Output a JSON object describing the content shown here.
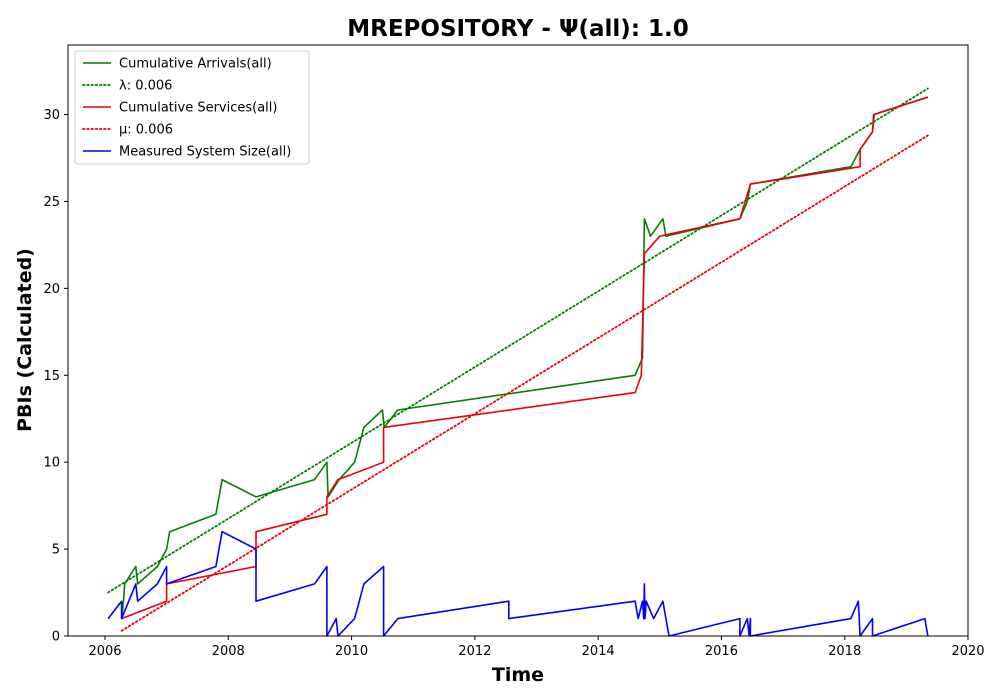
{
  "chart_data": {
    "type": "line",
    "title": "MREPOSITORY -  Ψ(all): 1.0",
    "xlabel": "Time",
    "ylabel": "PBIs (Calculated)",
    "xlim": [
      2005.4,
      2020.0
    ],
    "ylim": [
      0,
      34
    ],
    "x_ticks": [
      2006,
      2008,
      2010,
      2012,
      2014,
      2016,
      2018,
      2020
    ],
    "y_ticks": [
      0,
      5,
      10,
      15,
      20,
      25,
      30
    ],
    "legend_position": "top-left",
    "grid": false,
    "series": [
      {
        "name": "Cumulative Arrivals(all)",
        "color": "#008000",
        "style": "solid",
        "points": [
          [
            2006.27,
            1
          ],
          [
            2006.3,
            2
          ],
          [
            2006.32,
            3
          ],
          [
            2006.5,
            4
          ],
          [
            2006.53,
            3
          ],
          [
            2006.85,
            4
          ],
          [
            2007.0,
            5
          ],
          [
            2007.05,
            6
          ],
          [
            2007.8,
            7
          ],
          [
            2007.9,
            9
          ],
          [
            2008.45,
            8
          ],
          [
            2009.4,
            9
          ],
          [
            2009.6,
            10
          ],
          [
            2009.62,
            8
          ],
          [
            2009.8,
            9
          ],
          [
            2010.05,
            10
          ],
          [
            2010.2,
            12
          ],
          [
            2010.5,
            13
          ],
          [
            2010.53,
            12
          ],
          [
            2010.75,
            13
          ],
          [
            2014.6,
            15
          ],
          [
            2014.72,
            16
          ],
          [
            2014.75,
            24
          ],
          [
            2014.85,
            23
          ],
          [
            2015.05,
            24
          ],
          [
            2015.1,
            23
          ],
          [
            2016.3,
            24
          ],
          [
            2016.42,
            25
          ],
          [
            2016.47,
            26
          ],
          [
            2018.1,
            27
          ],
          [
            2018.25,
            28
          ],
          [
            2018.45,
            29
          ],
          [
            2018.48,
            30
          ],
          [
            2019.35,
            31
          ]
        ]
      },
      {
        "name": "λ: 0.006",
        "color": "#008000",
        "style": "dotted",
        "points": [
          [
            2006.05,
            2.5
          ],
          [
            2019.35,
            31.5
          ]
        ]
      },
      {
        "name": "Cumulative Services(all)",
        "color": "#e8000b",
        "style": "solid",
        "points": [
          [
            2006.27,
            1
          ],
          [
            2007.0,
            2
          ],
          [
            2007.0,
            3
          ],
          [
            2008.45,
            4
          ],
          [
            2008.45,
            6
          ],
          [
            2009.6,
            7
          ],
          [
            2009.6,
            8
          ],
          [
            2009.78,
            9
          ],
          [
            2010.52,
            10
          ],
          [
            2010.52,
            12
          ],
          [
            2014.6,
            14
          ],
          [
            2014.7,
            15
          ],
          [
            2014.75,
            22
          ],
          [
            2015.0,
            23
          ],
          [
            2016.3,
            24
          ],
          [
            2016.47,
            26
          ],
          [
            2018.25,
            27
          ],
          [
            2018.25,
            28
          ],
          [
            2018.45,
            29
          ],
          [
            2018.47,
            30
          ],
          [
            2019.35,
            31
          ]
        ]
      },
      {
        "name": "μ: 0.006",
        "color": "#e8000b",
        "style": "dotted",
        "points": [
          [
            2006.27,
            0.3
          ],
          [
            2019.35,
            28.8
          ]
        ]
      },
      {
        "name": "Measured System Size(all)",
        "color": "#0000ff",
        "style": "solid",
        "points": [
          [
            2006.05,
            1
          ],
          [
            2006.27,
            2
          ],
          [
            2006.27,
            1
          ],
          [
            2006.5,
            3
          ],
          [
            2006.53,
            2
          ],
          [
            2006.85,
            3
          ],
          [
            2007.0,
            4
          ],
          [
            2007.0,
            3
          ],
          [
            2007.8,
            4
          ],
          [
            2007.9,
            6
          ],
          [
            2008.45,
            5
          ],
          [
            2008.45,
            2
          ],
          [
            2009.4,
            3
          ],
          [
            2009.6,
            4
          ],
          [
            2009.6,
            0
          ],
          [
            2009.75,
            1
          ],
          [
            2009.78,
            0
          ],
          [
            2010.05,
            1
          ],
          [
            2010.2,
            3
          ],
          [
            2010.52,
            4
          ],
          [
            2010.52,
            0
          ],
          [
            2010.75,
            1
          ],
          [
            2012.55,
            2
          ],
          [
            2012.55,
            1
          ],
          [
            2014.6,
            2
          ],
          [
            2014.65,
            1
          ],
          [
            2014.72,
            2
          ],
          [
            2014.74,
            1
          ],
          [
            2014.75,
            3
          ],
          [
            2014.76,
            1
          ],
          [
            2014.78,
            2
          ],
          [
            2014.9,
            1
          ],
          [
            2015.05,
            2
          ],
          [
            2015.1,
            1
          ],
          [
            2015.15,
            0
          ],
          [
            2016.3,
            1
          ],
          [
            2016.3,
            0
          ],
          [
            2016.42,
            1
          ],
          [
            2016.45,
            0
          ],
          [
            2016.47,
            1
          ],
          [
            2016.47,
            0
          ],
          [
            2018.1,
            1
          ],
          [
            2018.22,
            2
          ],
          [
            2018.25,
            0
          ],
          [
            2018.45,
            1
          ],
          [
            2018.45,
            0
          ],
          [
            2019.3,
            1
          ],
          [
            2019.35,
            0
          ]
        ]
      }
    ]
  }
}
